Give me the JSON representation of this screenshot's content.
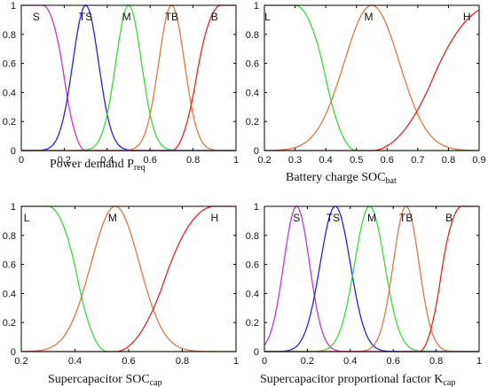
{
  "chart_data": [
    {
      "type": "line",
      "xlim": [
        0,
        1
      ],
      "ylim": [
        0,
        1
      ],
      "xticks": [
        "0",
        "0.2",
        "0.4",
        "0.6",
        "0.8",
        "1"
      ],
      "yticks": [
        "0",
        "0.2",
        "0.4",
        "0.6",
        "0.8",
        "1"
      ],
      "xlabel": {
        "main": "Power demand P",
        "sub": "req"
      },
      "series": [
        {
          "name": "S",
          "shape": "zmf",
          "params": [
            0.1,
            0.3
          ],
          "color": "#cc33cc"
        },
        {
          "name": "TS",
          "shape": "gauss",
          "params": [
            0.3,
            0.06
          ],
          "color": "#2222ee"
        },
        {
          "name": "M",
          "shape": "gauss",
          "params": [
            0.5,
            0.06
          ],
          "color": "#33dd33"
        },
        {
          "name": "TB",
          "shape": "gauss",
          "params": [
            0.7,
            0.06
          ],
          "color": "#dd7744"
        },
        {
          "name": "B",
          "shape": "smf",
          "params": [
            0.7,
            0.93
          ],
          "color": "#ee2222"
        }
      ],
      "labels": [
        {
          "text": "S",
          "x": 0.07
        },
        {
          "text": "TS",
          "x": 0.3
        },
        {
          "text": "M",
          "x": 0.49
        },
        {
          "text": "TB",
          "x": 0.7
        },
        {
          "text": "B",
          "x": 0.9
        }
      ]
    },
    {
      "type": "line",
      "xlim": [
        0.2,
        0.9
      ],
      "ylim": [
        0,
        1
      ],
      "xticks": [
        "0.2",
        "0.3",
        "0.4",
        "0.5",
        "0.6",
        "0.7",
        "0.8",
        "0.9"
      ],
      "yticks": [
        "0",
        "0.2",
        "0.4",
        "0.6",
        "0.8",
        "1"
      ],
      "xlabel": {
        "main": "Battery charge SOC",
        "sub": "bat"
      },
      "series": [
        {
          "name": "L",
          "shape": "zmf",
          "params": [
            0.3,
            0.5
          ],
          "color": "#33dd33"
        },
        {
          "name": "M",
          "shape": "gauss",
          "params": [
            0.55,
            0.09
          ],
          "color": "#dd7744"
        },
        {
          "name": "H",
          "shape": "smf",
          "params": [
            0.55,
            0.95
          ],
          "color": "#ee2222"
        }
      ],
      "labels": [
        {
          "text": "L",
          "x": 0.21
        },
        {
          "text": "M",
          "x": 0.54
        },
        {
          "text": "H",
          "x": 0.86
        }
      ]
    },
    {
      "type": "line",
      "xlim": [
        0.2,
        1
      ],
      "ylim": [
        0,
        1
      ],
      "xticks": [
        "0.2",
        "0.4",
        "0.6",
        "0.8",
        "1"
      ],
      "yticks": [
        "0",
        "0.2",
        "0.4",
        "0.6",
        "0.8",
        "1"
      ],
      "xlabel": {
        "main": "Supercapacitor SOC",
        "sub": "cap"
      },
      "series": [
        {
          "name": "L",
          "shape": "zmf",
          "params": [
            0.3,
            0.52
          ],
          "color": "#33dd33"
        },
        {
          "name": "M",
          "shape": "gauss",
          "params": [
            0.55,
            0.09
          ],
          "color": "#dd7744"
        },
        {
          "name": "H",
          "shape": "smf",
          "params": [
            0.55,
            0.92
          ],
          "color": "#ee2222"
        }
      ],
      "labels": [
        {
          "text": "L",
          "x": 0.22
        },
        {
          "text": "M",
          "x": 0.54
        },
        {
          "text": "H",
          "x": 0.92
        }
      ]
    },
    {
      "type": "line",
      "xlim": [
        0,
        1
      ],
      "ylim": [
        0,
        1
      ],
      "xticks": [
        "0",
        "0.2",
        "0.4",
        "0.6",
        "0.8",
        "1"
      ],
      "yticks": [
        "0",
        "0.2",
        "0.4",
        "0.6",
        "0.8",
        "1"
      ],
      "xlabel": {
        "main": "Supercapacitor proportional factor K",
        "sub": "cap"
      },
      "series": [
        {
          "name": "S",
          "shape": "gauss",
          "params": [
            0.15,
            0.06
          ],
          "color": "#cc33cc"
        },
        {
          "name": "TS",
          "shape": "gauss",
          "params": [
            0.33,
            0.07
          ],
          "color": "#2222ee"
        },
        {
          "name": "M",
          "shape": "gauss",
          "params": [
            0.49,
            0.07
          ],
          "color": "#33dd33"
        },
        {
          "name": "TB",
          "shape": "gauss",
          "params": [
            0.66,
            0.06
          ],
          "color": "#dd7744"
        },
        {
          "name": "B",
          "shape": "smf",
          "params": [
            0.72,
            0.92
          ],
          "color": "#ee2222"
        }
      ],
      "labels": [
        {
          "text": "S",
          "x": 0.15
        },
        {
          "text": "TS",
          "x": 0.32
        },
        {
          "text": "M",
          "x": 0.5
        },
        {
          "text": "TB",
          "x": 0.66
        },
        {
          "text": "B",
          "x": 0.86
        }
      ]
    }
  ]
}
